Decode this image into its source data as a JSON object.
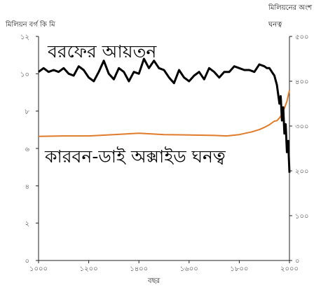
{
  "chart_data": {
    "type": "line",
    "xlabel": "বছর",
    "ylabel_left_line1": "",
    "ylabel_left": "মিলিয়ন বর্গ কি মি",
    "ylabel_right_line1": "মিলিয়নের অংশ",
    "ylabel_right_line2": "ঘনত্ব",
    "xlim": [
      1000,
      2000
    ],
    "ylim_left": [
      0,
      12
    ],
    "ylim_right": [
      0,
      500
    ],
    "x_ticks": [
      1000,
      1200,
      1400,
      1600,
      1800,
      2000
    ],
    "x_tick_labels": [
      "১০০০",
      "১২০০",
      "১৪০০",
      "১৬০০",
      "১৮০০",
      "২০০০"
    ],
    "y_left_ticks": [
      0,
      2,
      4,
      6,
      8,
      10,
      12
    ],
    "y_left_tick_labels": [
      "০",
      "২",
      "৪",
      "৬",
      "৮",
      "১০",
      "১২"
    ],
    "y_right_ticks": [
      0,
      100,
      200,
      300,
      400,
      500
    ],
    "y_right_tick_labels": [
      "০",
      "১০০",
      "২০০",
      "৩০০",
      "৪০০",
      "৫০০"
    ],
    "grid": false,
    "series": [
      {
        "name": "বরফের আয়তন",
        "axis": "left",
        "color": "#000000",
        "x": [
          1000,
          1020,
          1040,
          1060,
          1080,
          1100,
          1120,
          1140,
          1160,
          1180,
          1200,
          1220,
          1240,
          1260,
          1280,
          1300,
          1320,
          1340,
          1360,
          1380,
          1400,
          1420,
          1440,
          1460,
          1480,
          1500,
          1520,
          1540,
          1560,
          1580,
          1600,
          1620,
          1640,
          1660,
          1680,
          1700,
          1720,
          1740,
          1760,
          1780,
          1800,
          1820,
          1840,
          1860,
          1880,
          1900,
          1910,
          1920,
          1930,
          1940,
          1950,
          1960,
          1965,
          1970,
          1975,
          1980,
          1985,
          1990,
          1995,
          2000
        ],
        "values": [
          10.1,
          10.3,
          10.1,
          10.2,
          10.1,
          10.3,
          10.0,
          9.9,
          10.4,
          10.2,
          9.8,
          9.6,
          10.1,
          10.7,
          10.0,
          9.7,
          10.3,
          10.1,
          9.6,
          10.1,
          10.0,
          10.8,
          10.3,
          10.7,
          10.3,
          10.2,
          9.8,
          9.5,
          10.2,
          9.8,
          9.6,
          9.9,
          10.1,
          9.7,
          10.3,
          10.1,
          9.8,
          10.1,
          10.1,
          10.4,
          10.3,
          10.2,
          10.2,
          10.1,
          10.5,
          10.4,
          10.3,
          10.3,
          10.1,
          9.9,
          9.4,
          8.4,
          8.8,
          7.5,
          8.2,
          6.8,
          7.3,
          5.8,
          6.4,
          4.7
        ]
      },
      {
        "name": "কারবন-ডাই অক্সাইড ঘনত্ব",
        "axis": "right",
        "color": "#e07b2a",
        "x": [
          1000,
          1100,
          1200,
          1300,
          1400,
          1500,
          1600,
          1700,
          1750,
          1800,
          1850,
          1880,
          1900,
          1920,
          1940,
          1950,
          1960,
          1970,
          1980,
          1990,
          2000
        ],
        "values": [
          277,
          278,
          278,
          281,
          284,
          281,
          280,
          279,
          278,
          281,
          287,
          292,
          297,
          303,
          311,
          312,
          318,
          326,
          340,
          355,
          380
        ]
      }
    ]
  }
}
